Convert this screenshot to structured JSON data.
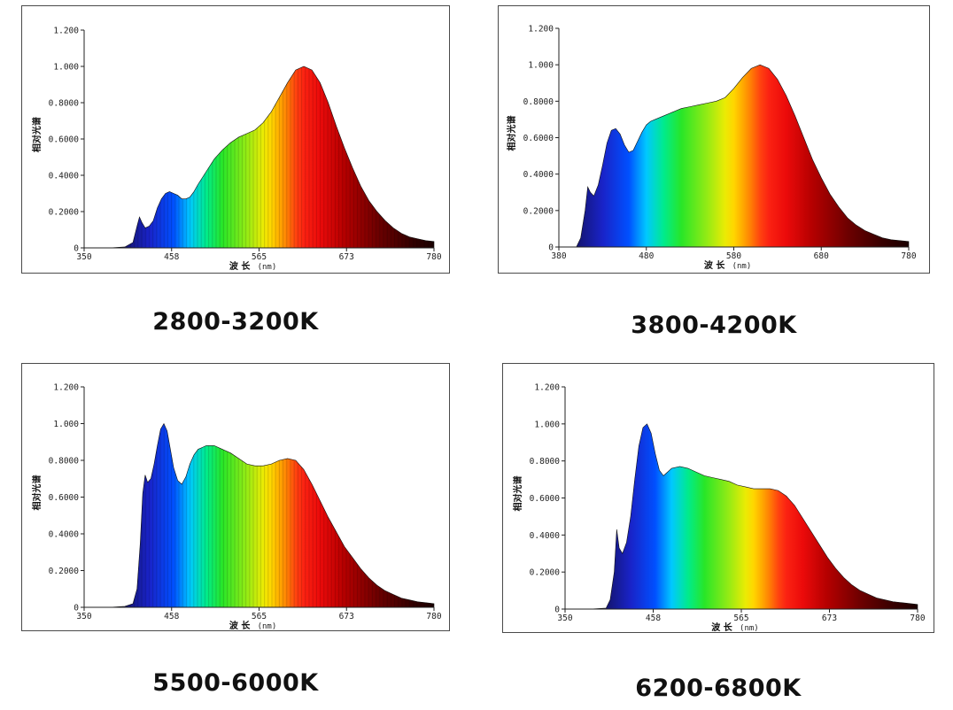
{
  "chart_data": [
    {
      "type": "area",
      "caption": "2800-3200K",
      "ylabel": "相对光谱",
      "xlabel": "波 长",
      "xunit": "(nm)",
      "xlim": [
        350,
        780
      ],
      "ylim": [
        0,
        1.2
      ],
      "xticks": [
        "350",
        "458",
        "565",
        "673",
        "780"
      ],
      "yticks": [
        "0",
        "0.2000",
        "0.4000",
        "0.6000",
        "0.8000",
        "1.000",
        "1.200"
      ],
      "fill": "spectrum",
      "striped": true,
      "x": [
        380,
        400,
        410,
        415,
        418,
        421,
        425,
        430,
        435,
        440,
        445,
        450,
        455,
        460,
        465,
        470,
        475,
        480,
        485,
        490,
        500,
        510,
        520,
        530,
        540,
        550,
        560,
        570,
        580,
        590,
        600,
        610,
        620,
        630,
        640,
        650,
        660,
        670,
        680,
        690,
        700,
        710,
        720,
        730,
        740,
        750,
        760,
        770,
        780
      ],
      "values": [
        0,
        0.005,
        0.03,
        0.12,
        0.17,
        0.14,
        0.11,
        0.12,
        0.15,
        0.22,
        0.27,
        0.3,
        0.31,
        0.3,
        0.29,
        0.27,
        0.27,
        0.28,
        0.31,
        0.35,
        0.42,
        0.49,
        0.54,
        0.58,
        0.61,
        0.63,
        0.65,
        0.69,
        0.75,
        0.83,
        0.91,
        0.98,
        1.0,
        0.98,
        0.91,
        0.8,
        0.67,
        0.55,
        0.44,
        0.34,
        0.26,
        0.2,
        0.15,
        0.11,
        0.08,
        0.06,
        0.05,
        0.04,
        0.035
      ]
    },
    {
      "type": "area",
      "caption": "3800-4200K",
      "ylabel": "相对光谱",
      "xlabel": "波 长",
      "xunit": "(nm)",
      "xlim": [
        380,
        780
      ],
      "ylim": [
        0,
        1.2
      ],
      "xticks": [
        "380",
        "480",
        "580",
        "680",
        "780"
      ],
      "yticks": [
        "0",
        "0.2000",
        "0.4000",
        "0.6000",
        "0.8000",
        "1.000",
        "1.200"
      ],
      "fill": "spectrum",
      "striped": false,
      "x": [
        400,
        405,
        410,
        413,
        416,
        420,
        425,
        430,
        435,
        440,
        445,
        450,
        455,
        460,
        465,
        470,
        475,
        480,
        485,
        490,
        500,
        510,
        520,
        530,
        540,
        550,
        560,
        570,
        580,
        590,
        600,
        610,
        620,
        630,
        640,
        650,
        660,
        670,
        680,
        690,
        700,
        710,
        720,
        730,
        740,
        750,
        760,
        770,
        780
      ],
      "values": [
        0.0,
        0.05,
        0.2,
        0.33,
        0.3,
        0.28,
        0.34,
        0.45,
        0.57,
        0.64,
        0.65,
        0.62,
        0.56,
        0.52,
        0.53,
        0.58,
        0.63,
        0.67,
        0.69,
        0.7,
        0.72,
        0.74,
        0.76,
        0.77,
        0.78,
        0.79,
        0.8,
        0.82,
        0.87,
        0.93,
        0.98,
        1.0,
        0.98,
        0.92,
        0.83,
        0.72,
        0.6,
        0.48,
        0.38,
        0.29,
        0.22,
        0.16,
        0.12,
        0.09,
        0.07,
        0.05,
        0.04,
        0.035,
        0.03
      ]
    },
    {
      "type": "area",
      "caption": "5500-6000K",
      "ylabel": "相对光谱",
      "xlabel": "波 长",
      "xunit": "(nm)",
      "xlim": [
        350,
        780
      ],
      "ylim": [
        0,
        1.2
      ],
      "xticks": [
        "350",
        "458",
        "565",
        "673",
        "780"
      ],
      "yticks": [
        "0",
        "0.2000",
        "0.4000",
        "0.6000",
        "0.8000",
        "1.000",
        "1.200"
      ],
      "fill": "spectrum",
      "striped": true,
      "x": [
        380,
        400,
        410,
        415,
        419,
        422,
        425,
        428,
        432,
        436,
        440,
        444,
        448,
        452,
        456,
        460,
        465,
        470,
        475,
        480,
        485,
        490,
        495,
        500,
        510,
        520,
        530,
        540,
        550,
        560,
        570,
        580,
        590,
        600,
        610,
        620,
        630,
        640,
        650,
        660,
        670,
        680,
        690,
        700,
        710,
        720,
        730,
        740,
        750,
        760,
        770,
        780
      ],
      "values": [
        0,
        0.005,
        0.02,
        0.1,
        0.35,
        0.62,
        0.72,
        0.68,
        0.7,
        0.78,
        0.88,
        0.97,
        1.0,
        0.96,
        0.86,
        0.76,
        0.69,
        0.67,
        0.71,
        0.78,
        0.83,
        0.86,
        0.87,
        0.88,
        0.88,
        0.86,
        0.84,
        0.81,
        0.78,
        0.77,
        0.77,
        0.78,
        0.8,
        0.81,
        0.8,
        0.75,
        0.67,
        0.58,
        0.49,
        0.41,
        0.33,
        0.27,
        0.21,
        0.16,
        0.12,
        0.09,
        0.07,
        0.05,
        0.04,
        0.03,
        0.025,
        0.02
      ]
    },
    {
      "type": "area",
      "caption": "6200-6800K",
      "ylabel": "相对光谱",
      "xlabel": "波 长",
      "xunit": "(nm)",
      "xlim": [
        350,
        780
      ],
      "ylim": [
        0,
        1.2
      ],
      "xticks": [
        "350",
        "458",
        "565",
        "673",
        "780"
      ],
      "yticks": [
        "0",
        "0.2000",
        "0.4000",
        "0.6000",
        "0.8000",
        "1.000",
        "1.200"
      ],
      "fill": "spectrum",
      "striped": false,
      "x": [
        380,
        400,
        405,
        410,
        413,
        416,
        420,
        425,
        430,
        435,
        440,
        445,
        450,
        455,
        460,
        465,
        470,
        475,
        480,
        490,
        500,
        510,
        520,
        530,
        540,
        550,
        560,
        570,
        580,
        590,
        600,
        610,
        620,
        630,
        640,
        650,
        660,
        670,
        680,
        690,
        700,
        710,
        720,
        730,
        740,
        750,
        760,
        770,
        780
      ],
      "values": [
        0,
        0.005,
        0.05,
        0.2,
        0.43,
        0.33,
        0.3,
        0.36,
        0.5,
        0.7,
        0.88,
        0.98,
        1.0,
        0.95,
        0.84,
        0.75,
        0.72,
        0.74,
        0.76,
        0.77,
        0.76,
        0.74,
        0.72,
        0.71,
        0.7,
        0.69,
        0.67,
        0.66,
        0.65,
        0.65,
        0.65,
        0.64,
        0.61,
        0.56,
        0.49,
        0.42,
        0.35,
        0.28,
        0.22,
        0.17,
        0.13,
        0.1,
        0.08,
        0.06,
        0.05,
        0.04,
        0.035,
        0.03,
        0.025
      ]
    }
  ]
}
